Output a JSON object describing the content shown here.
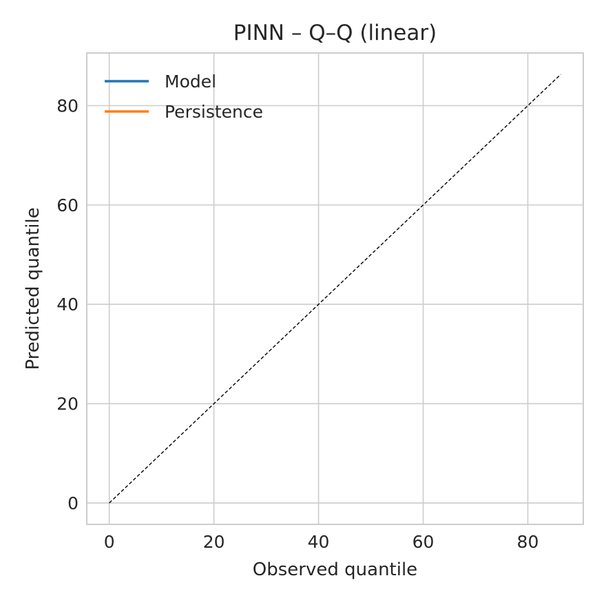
{
  "chart_data": {
    "type": "line",
    "title": "PINN – Q–Q (linear)",
    "xlabel": "Observed quantile",
    "ylabel": "Predicted quantile",
    "xlim": [
      -4.3,
      90.6
    ],
    "ylim": [
      -4.3,
      90.6
    ],
    "xticks": [
      0,
      20,
      40,
      60,
      80
    ],
    "yticks": [
      0,
      20,
      40,
      60,
      80
    ],
    "grid": true,
    "legend_position": "upper-left",
    "series": [
      {
        "name": "Model",
        "color": "#1f77b4",
        "x": [],
        "y": []
      },
      {
        "name": "Persistence",
        "color": "#ff7f0e",
        "x": [],
        "y": []
      }
    ],
    "reference_line": {
      "style": "dashed",
      "color": "#000000",
      "x": [
        0,
        86.3
      ],
      "y": [
        0,
        86.3
      ]
    }
  }
}
